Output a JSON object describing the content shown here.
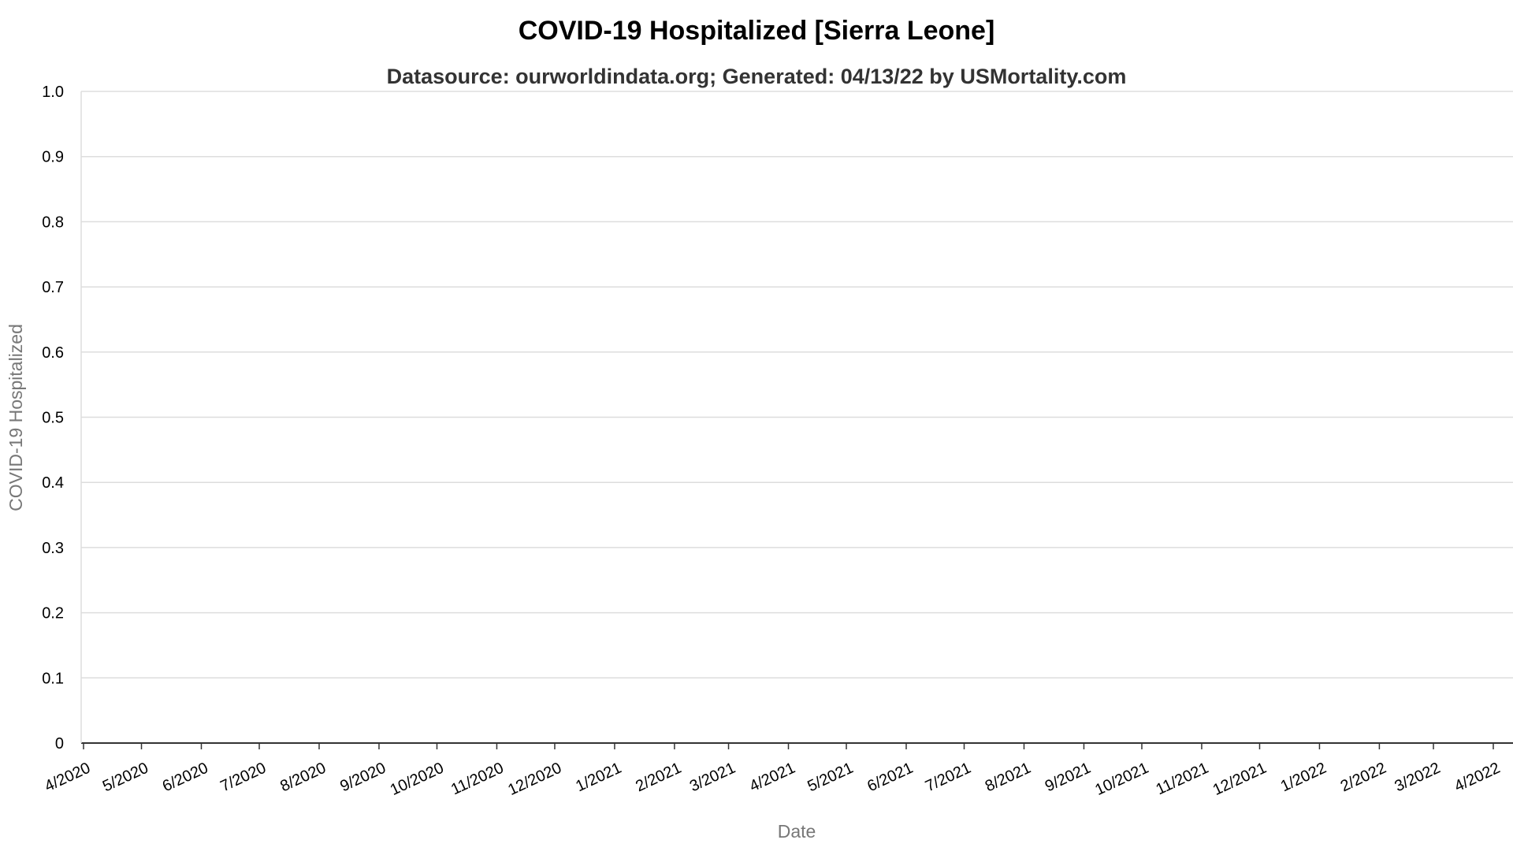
{
  "chart_data": {
    "type": "line",
    "title": "COVID-19 Hospitalized [Sierra Leone]",
    "subtitle": "Datasource: ourworldindata.org; Generated: 04/13/22 by USMortality.com",
    "xlabel": "Date",
    "ylabel": "COVID-19 Hospitalized",
    "ylim": [
      0,
      1
    ],
    "yticks": [
      "0",
      "0.1",
      "0.2",
      "0.3",
      "0.4",
      "0.5",
      "0.6",
      "0.7",
      "0.8",
      "0.9",
      "1.0"
    ],
    "xticks": [
      "4/2020",
      "5/2020",
      "6/2020",
      "7/2020",
      "8/2020",
      "9/2020",
      "10/2020",
      "11/2020",
      "12/2020",
      "1/2021",
      "2/2021",
      "3/2021",
      "4/2021",
      "5/2021",
      "6/2021",
      "7/2021",
      "8/2021",
      "9/2021",
      "10/2021",
      "11/2021",
      "12/2021",
      "1/2022",
      "2/2022",
      "3/2022",
      "4/2022"
    ],
    "xlim": [
      "2020-04-01",
      "2022-04-01"
    ],
    "grid": true,
    "series": [
      {
        "values": []
      }
    ]
  }
}
